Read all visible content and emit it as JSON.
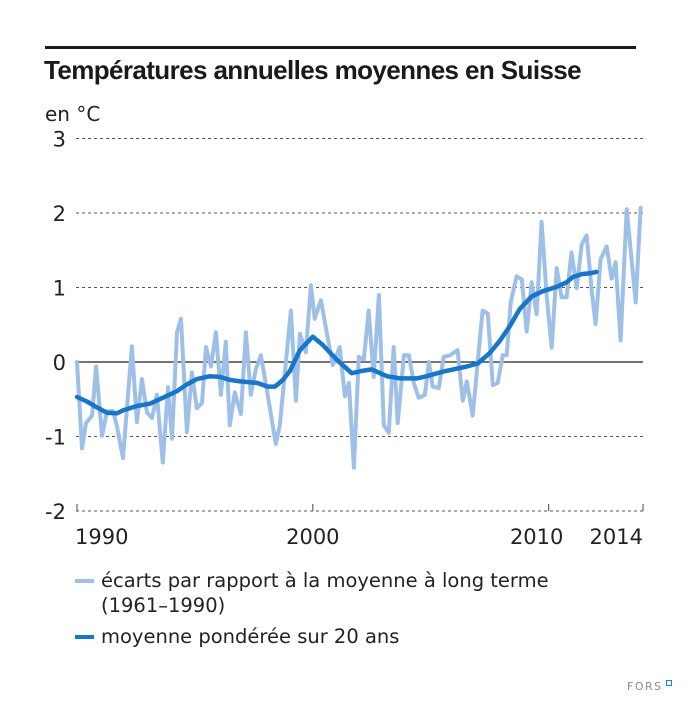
{
  "logo": {
    "text": "FORS",
    "accent": "#1d7fcf"
  },
  "colors": {
    "light_series": "#9ebfe8",
    "dark_series": "#1776c8",
    "grid": "#555555",
    "zero": "#222222"
  },
  "chart_data": {
    "type": "line",
    "title": "Températures annuelles moyennes en Suisse",
    "ylabel": "en °C",
    "xlabel": "",
    "xlim": [
      1990,
      2014
    ],
    "ylim": [
      -2,
      3
    ],
    "grid": true,
    "y_ticks": [
      {
        "value": 3,
        "label": "3"
      },
      {
        "value": 2,
        "label": "2"
      },
      {
        "value": 1,
        "label": "1"
      },
      {
        "value": 0,
        "label": "0"
      },
      {
        "value": -1,
        "label": "-1"
      },
      {
        "value": -2,
        "label": "-2"
      }
    ],
    "x_ticks": [
      {
        "value": 1990,
        "label": "1990"
      },
      {
        "value": 2000,
        "label": "2000"
      },
      {
        "value": 2010,
        "label": "2010"
      },
      {
        "value": 2014,
        "label": "2014"
      }
    ],
    "legend_position": "bottom",
    "series": [
      {
        "name": "écarts par rapport à la moyenne à long terme",
        "name_line2": "(1961–1990)",
        "x": [
          1990.0,
          1990.21,
          1990.38,
          1990.64,
          1990.81,
          1991.06,
          1991.27,
          1991.53,
          1991.69,
          1991.95,
          1992.33,
          1992.54,
          1992.75,
          1992.97,
          1993.18,
          1993.39,
          1993.64,
          1993.86,
          1994.03,
          1994.24,
          1994.41,
          1994.66,
          1994.87,
          1995.08,
          1995.3,
          1995.47,
          1995.68,
          1995.89,
          1996.1,
          1996.31,
          1996.48,
          1996.69,
          1996.95,
          1997.16,
          1997.37,
          1997.58,
          1997.8,
          1998.05,
          1998.43,
          1998.6,
          1999.07,
          1999.28,
          1999.45,
          1999.7,
          1999.92,
          2000.08,
          2000.34,
          2000.59,
          2000.85,
          2001.14,
          2001.36,
          2001.53,
          2001.74,
          2001.95,
          2002.16,
          2002.37,
          2002.58,
          2002.8,
          2003.01,
          2003.22,
          2003.43,
          2003.6,
          2003.86,
          2004.07,
          2004.28,
          2004.49,
          2004.75,
          2004.92,
          2005.08,
          2005.34,
          2005.55,
          2005.81,
          2006.14,
          2006.36,
          2006.53,
          2006.78,
          2007.2,
          2007.42,
          2007.63,
          2007.84,
          2008.05,
          2008.22,
          2008.39,
          2008.64,
          2008.86,
          2009.07,
          2009.28,
          2009.49,
          2009.7,
          2009.92,
          2010.13,
          2010.34,
          2010.55,
          2010.76,
          2010.97,
          2011.19,
          2011.4,
          2011.61,
          2011.82,
          2011.99,
          2012.2,
          2012.46,
          2012.67,
          2012.84,
          2013.05,
          2013.31,
          2013.69,
          2013.9
        ],
        "y": [
          0.0,
          -1.16,
          -0.82,
          -0.72,
          -0.06,
          -0.99,
          -0.66,
          -0.66,
          -0.86,
          -1.29,
          0.21,
          -0.81,
          -0.23,
          -0.68,
          -0.75,
          -0.44,
          -1.35,
          -0.34,
          -1.03,
          0.4,
          0.58,
          -0.94,
          -0.14,
          -0.62,
          -0.55,
          0.2,
          -0.06,
          0.4,
          -0.44,
          0.27,
          -0.85,
          -0.41,
          -0.7,
          0.4,
          -0.44,
          -0.1,
          0.09,
          -0.37,
          -1.1,
          -0.85,
          0.69,
          -0.52,
          0.38,
          0.13,
          1.03,
          0.58,
          0.83,
          0.4,
          -0.04,
          0.2,
          -0.46,
          -0.28,
          -1.42,
          0.07,
          0.03,
          0.69,
          -0.2,
          0.9,
          -0.85,
          -0.95,
          0.2,
          -0.82,
          0.09,
          0.09,
          -0.28,
          -0.48,
          -0.44,
          0.0,
          -0.33,
          -0.35,
          0.07,
          0.09,
          0.16,
          -0.52,
          -0.26,
          -0.72,
          0.69,
          0.65,
          -0.31,
          -0.28,
          0.09,
          0.09,
          0.8,
          1.15,
          1.11,
          0.41,
          1.07,
          0.64,
          1.88,
          0.87,
          0.19,
          1.26,
          0.87,
          0.87,
          1.47,
          0.99,
          1.58,
          1.7,
          0.97,
          0.51,
          1.38,
          1.55,
          1.12,
          1.34,
          0.29,
          2.05,
          0.8,
          2.07
        ]
      },
      {
        "name": "moyenne pondérée sur 20 ans",
        "x": [
          1990.0,
          1990.42,
          1990.85,
          1991.27,
          1991.69,
          1991.95,
          1992.54,
          1993.09,
          1993.64,
          1994.24,
          1994.66,
          1995.08,
          1995.64,
          1996.06,
          1996.48,
          1996.91,
          1997.63,
          1998.09,
          1998.39,
          1998.73,
          1999.03,
          1999.45,
          2000.0,
          2000.42,
          2001.02,
          2001.65,
          2002.08,
          2002.5,
          2003.14,
          2003.69,
          2004.41,
          2004.83,
          2005.51,
          2006.1,
          2006.53,
          2006.99,
          2007.5,
          2007.92,
          2008.35,
          2008.77,
          2009.28,
          2009.75,
          2010.34,
          2010.76,
          2011.02,
          2011.4,
          2011.74,
          2012.03
        ],
        "y": [
          -0.47,
          -0.53,
          -0.61,
          -0.68,
          -0.69,
          -0.65,
          -0.59,
          -0.56,
          -0.48,
          -0.39,
          -0.3,
          -0.23,
          -0.19,
          -0.2,
          -0.24,
          -0.26,
          -0.28,
          -0.33,
          -0.33,
          -0.24,
          -0.12,
          0.16,
          0.34,
          0.23,
          0.03,
          -0.15,
          -0.12,
          -0.1,
          -0.19,
          -0.22,
          -0.22,
          -0.19,
          -0.13,
          -0.09,
          -0.06,
          -0.02,
          0.12,
          0.28,
          0.48,
          0.71,
          0.88,
          0.95,
          1.01,
          1.07,
          1.14,
          1.18,
          1.19,
          1.21
        ]
      }
    ]
  }
}
